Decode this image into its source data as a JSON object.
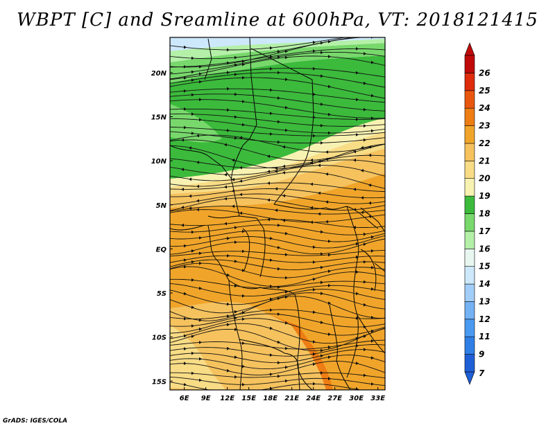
{
  "title": "WBPT [C] and Sreamline at 600hPa, VT: 2018121415",
  "credit": "GrADS: IGES/COLA",
  "map": {
    "lon_range": [
      4,
      34
    ],
    "lat_range": [
      -16,
      24
    ],
    "lon_ticks": [
      {
        "value": 6,
        "label": "6E"
      },
      {
        "value": 9,
        "label": "9E"
      },
      {
        "value": 12,
        "label": "12E"
      },
      {
        "value": 15,
        "label": "15E"
      },
      {
        "value": 18,
        "label": "18E"
      },
      {
        "value": 21,
        "label": "21E"
      },
      {
        "value": 24,
        "label": "24E"
      },
      {
        "value": 27,
        "label": "27E"
      },
      {
        "value": 30,
        "label": "30E"
      },
      {
        "value": 33,
        "label": "33E"
      }
    ],
    "lat_ticks": [
      {
        "value": 20,
        "label": "20N"
      },
      {
        "value": 15,
        "label": "15N"
      },
      {
        "value": 10,
        "label": "10N"
      },
      {
        "value": 5,
        "label": "5N"
      },
      {
        "value": 0,
        "label": "EQ"
      },
      {
        "value": -5,
        "label": "5S"
      },
      {
        "value": -10,
        "label": "10S"
      },
      {
        "value": -15,
        "label": "15S"
      }
    ]
  },
  "colorbar": {
    "labels": [
      "7",
      "9",
      "11",
      "12",
      "13",
      "14",
      "15",
      "16",
      "17",
      "18",
      "19",
      "20",
      "21",
      "22",
      "23",
      "24",
      "25",
      "26"
    ],
    "colors": [
      "#1f5fd6",
      "#2f7fe6",
      "#4a9af0",
      "#74b2f4",
      "#a2cdf8",
      "#cde8fb",
      "#e8f8f0",
      "#b4f0a8",
      "#78d86c",
      "#3cba3c",
      "#f8f2b2",
      "#f8dc86",
      "#f5c25e",
      "#f0a52a",
      "#ee7d14",
      "#e9560e",
      "#de2c0c",
      "#c00a0a"
    ]
  },
  "field_colors": {
    "light_blue": "#cde8fb",
    "pale_green": "#b4f0a8",
    "light_green": "#78d86c",
    "green": "#3cba3c",
    "pale_yellow": "#f8f2b2",
    "yellow": "#f8dc86",
    "light_orange": "#f5c25e",
    "orange": "#f0a52a",
    "deep_orange": "#ee7d14"
  }
}
